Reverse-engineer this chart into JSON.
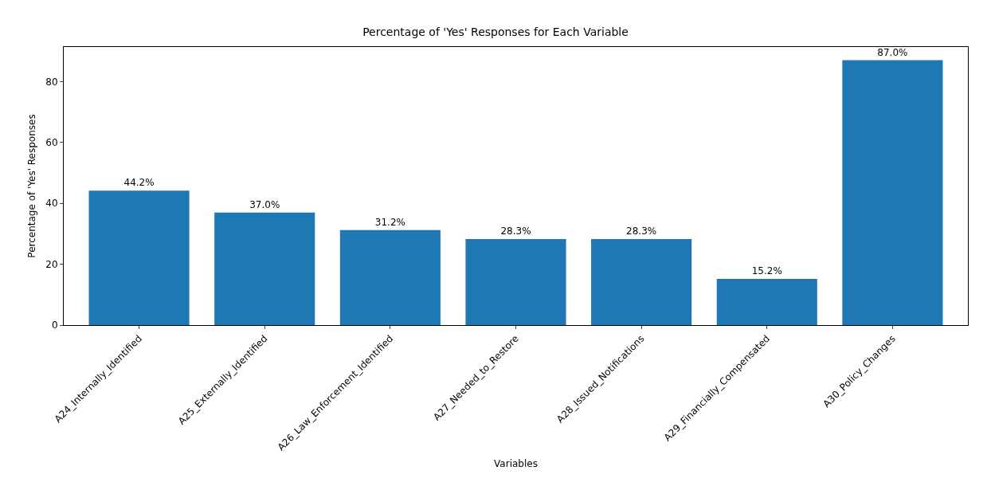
{
  "chart_data": {
    "type": "bar",
    "title": "Percentage of 'Yes' Responses for Each Variable",
    "xlabel": "Variables",
    "ylabel": "Percentage of 'Yes' Responses",
    "categories": [
      "A24_Internally_Identified",
      "A25_Externally_Identified",
      "A26_Law_Enforcement_Identified",
      "A27_Needed_to_Restore",
      "A28_Issued_Notifications",
      "A29_Financially_Compensated",
      "A30_Policy_Changes"
    ],
    "values": [
      44.2,
      37.0,
      31.2,
      28.3,
      28.3,
      15.2,
      87.0
    ],
    "value_labels": [
      "44.2%",
      "37.0%",
      "31.2%",
      "28.3%",
      "28.3%",
      "15.2%",
      "87.0%"
    ],
    "color": "#1f77b4",
    "ylim": [
      0,
      91.35
    ],
    "yticks": [
      0,
      20,
      40,
      60,
      80
    ],
    "grid": false,
    "legend": false
  }
}
